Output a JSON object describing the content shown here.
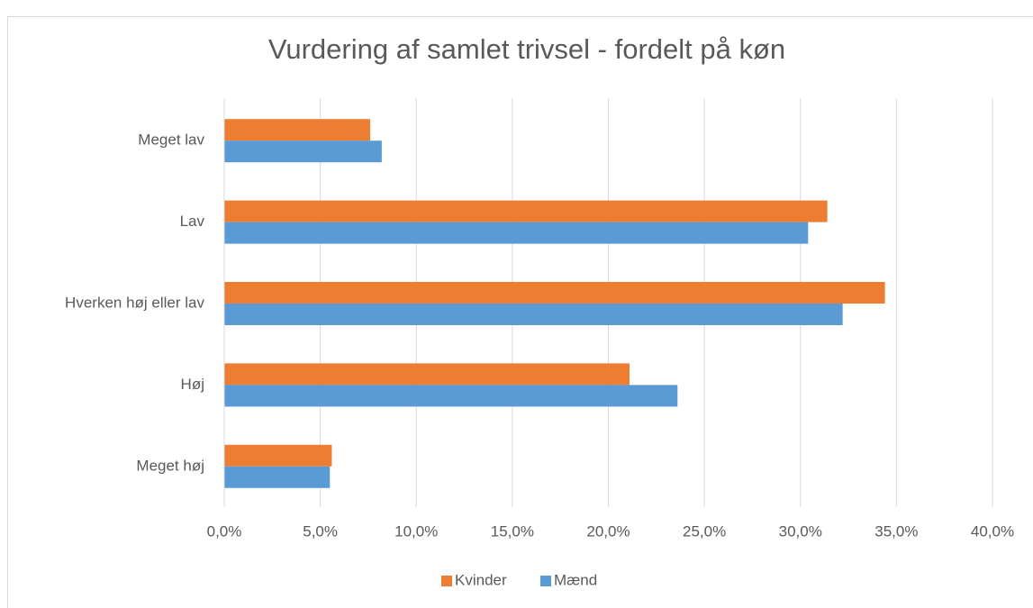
{
  "chart_data": {
    "type": "hbar",
    "title": "Vurdering af samlet trivsel - fordelt på køn",
    "categories": [
      "Meget lav",
      "Lav",
      "Hverken høj eller lav",
      "Høj",
      "Meget høj"
    ],
    "series": [
      {
        "name": "Kvinder",
        "color": "#ed7d31",
        "values": [
          7.6,
          31.4,
          34.4,
          21.1,
          5.6
        ]
      },
      {
        "name": "Mænd",
        "color": "#5b9bd5",
        "values": [
          8.2,
          30.4,
          32.2,
          23.6,
          5.5
        ]
      }
    ],
    "xlim": [
      0,
      40
    ],
    "xticks": [
      {
        "value": 0,
        "label": "0,0%"
      },
      {
        "value": 5,
        "label": "5,0%"
      },
      {
        "value": 10,
        "label": "10,0%"
      },
      {
        "value": 15,
        "label": "15,0%"
      },
      {
        "value": 20,
        "label": "20,0%"
      },
      {
        "value": 25,
        "label": "25,0%"
      },
      {
        "value": 30,
        "label": "30,0%"
      },
      {
        "value": 35,
        "label": "35,0%"
      },
      {
        "value": 40,
        "label": "40,0%"
      }
    ],
    "grid": true,
    "legend": "bottom"
  }
}
